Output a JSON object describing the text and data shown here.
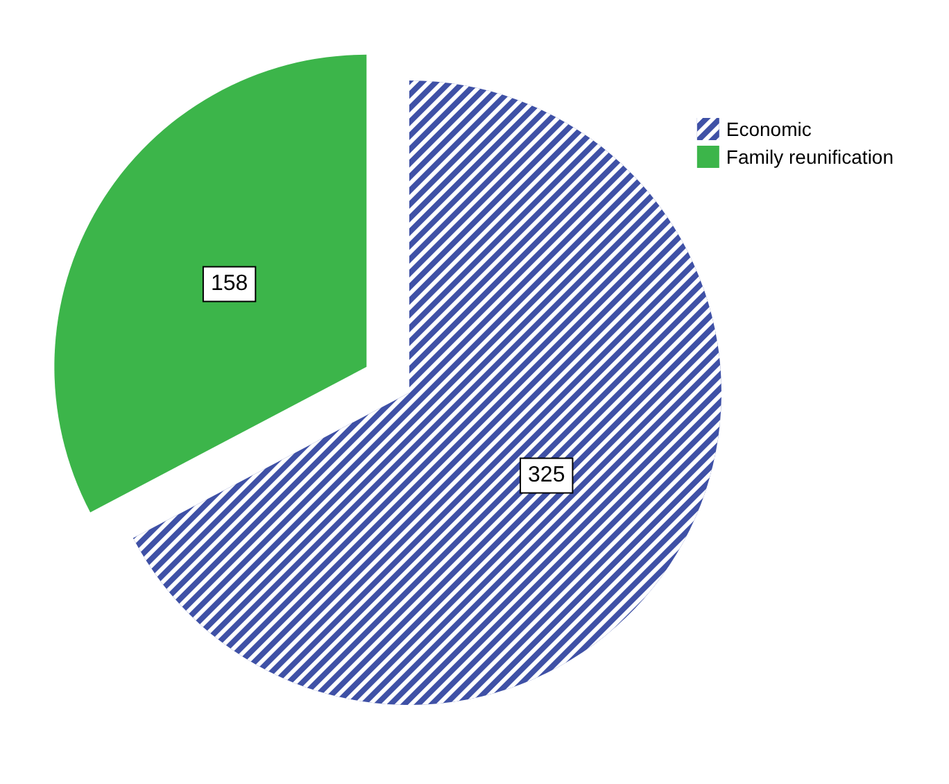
{
  "chart_data": {
    "type": "pie",
    "categories": [
      "Economic",
      "Family reunification"
    ],
    "values": [
      325,
      158
    ],
    "colors": [
      "#3f51a6",
      "#3cb54a"
    ],
    "data_labels": true,
    "legend": "top right"
  }
}
